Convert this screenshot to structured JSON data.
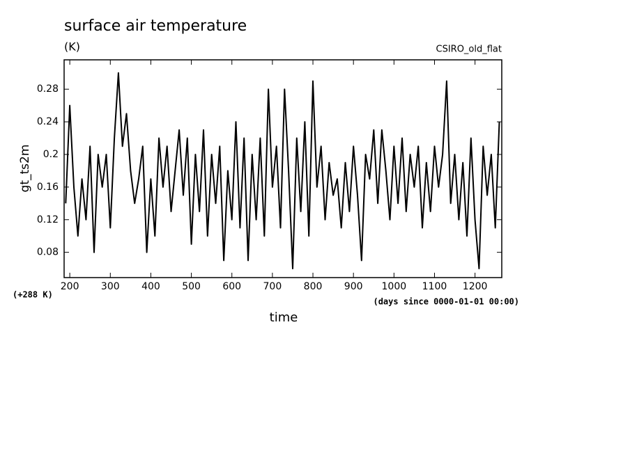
{
  "chart_data": {
    "type": "line",
    "title": "surface air temperature",
    "subtitle": "(K)",
    "annotation": "CSIRO_old_flat",
    "offset_label": "(+288 K)",
    "x_units_label": "(days since 0000-01-01 00:00)",
    "xlabel": "time",
    "ylabel": "gt_ts2m",
    "xlim": [
      186,
      1266
    ],
    "ylim": [
      0.049,
      0.316
    ],
    "xticks": [
      200,
      300,
      400,
      500,
      600,
      700,
      800,
      900,
      1000,
      1100,
      1200
    ],
    "yticks": [
      0.08,
      0.12,
      0.16,
      0.2,
      0.24,
      0.28
    ],
    "x": [
      190,
      200,
      210,
      220,
      230,
      240,
      250,
      260,
      270,
      280,
      290,
      300,
      310,
      320,
      330,
      340,
      350,
      360,
      370,
      380,
      390,
      400,
      410,
      420,
      430,
      440,
      450,
      460,
      470,
      480,
      490,
      500,
      510,
      520,
      530,
      540,
      550,
      560,
      570,
      580,
      590,
      600,
      610,
      620,
      630,
      640,
      650,
      660,
      670,
      680,
      690,
      700,
      710,
      720,
      730,
      740,
      750,
      760,
      770,
      780,
      790,
      800,
      810,
      820,
      830,
      840,
      850,
      860,
      870,
      880,
      890,
      900,
      910,
      920,
      930,
      940,
      950,
      960,
      970,
      980,
      990,
      1000,
      1010,
      1020,
      1030,
      1040,
      1050,
      1060,
      1070,
      1080,
      1090,
      1100,
      1110,
      1120,
      1130,
      1140,
      1150,
      1160,
      1170,
      1180,
      1190,
      1200,
      1210,
      1220,
      1230,
      1240,
      1250,
      1260
    ],
    "series": [
      {
        "name": "gt_ts2m",
        "color": "#000000",
        "values": [
          0.14,
          0.26,
          0.16,
          0.1,
          0.17,
          0.12,
          0.21,
          0.08,
          0.2,
          0.16,
          0.2,
          0.11,
          0.22,
          0.3,
          0.21,
          0.25,
          0.18,
          0.14,
          0.17,
          0.21,
          0.08,
          0.17,
          0.1,
          0.22,
          0.16,
          0.21,
          0.13,
          0.18,
          0.23,
          0.15,
          0.22,
          0.09,
          0.2,
          0.13,
          0.23,
          0.1,
          0.2,
          0.14,
          0.21,
          0.07,
          0.18,
          0.12,
          0.24,
          0.11,
          0.22,
          0.07,
          0.2,
          0.12,
          0.22,
          0.1,
          0.28,
          0.16,
          0.21,
          0.11,
          0.28,
          0.18,
          0.06,
          0.22,
          0.13,
          0.24,
          0.1,
          0.29,
          0.16,
          0.21,
          0.12,
          0.19,
          0.15,
          0.17,
          0.11,
          0.19,
          0.13,
          0.21,
          0.15,
          0.07,
          0.2,
          0.17,
          0.23,
          0.14,
          0.23,
          0.18,
          0.12,
          0.21,
          0.14,
          0.22,
          0.13,
          0.2,
          0.16,
          0.21,
          0.11,
          0.19,
          0.13,
          0.21,
          0.16,
          0.2,
          0.29,
          0.14,
          0.2,
          0.12,
          0.19,
          0.1,
          0.22,
          0.12,
          0.06,
          0.21,
          0.15,
          0.2,
          0.11,
          0.24
        ]
      }
    ]
  }
}
